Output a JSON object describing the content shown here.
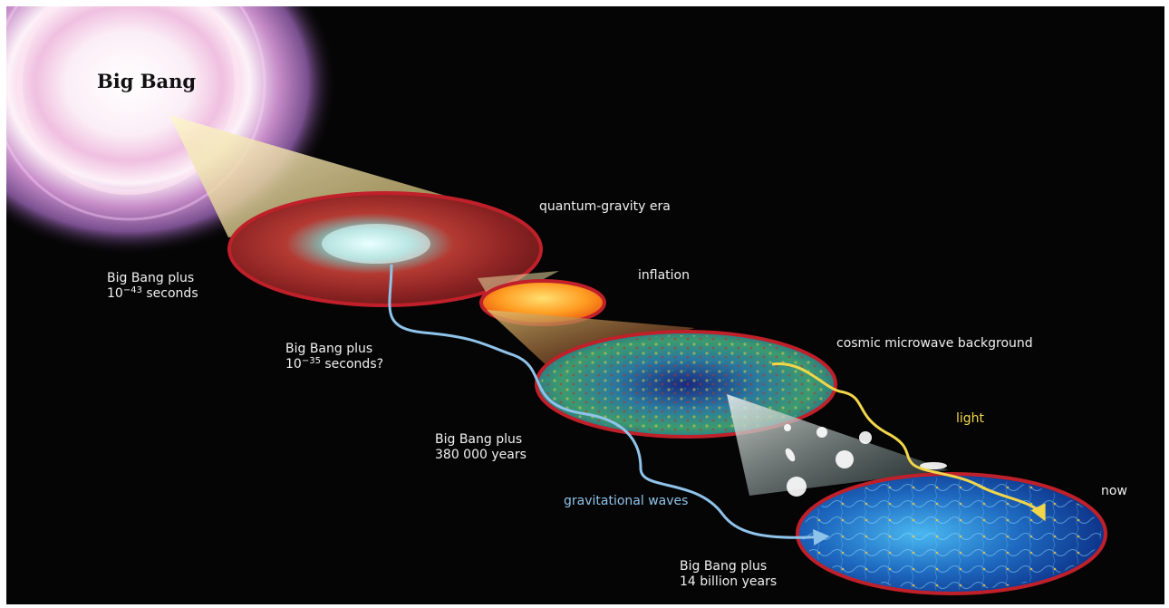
{
  "title": "Big Bang",
  "labels": {
    "quantum_gravity_era": "quantum-gravity era",
    "inflation": "inflation",
    "cmb": "cosmic microwave background",
    "light": "light",
    "now": "now",
    "gravitational_waves": "gravitational waves"
  },
  "stages": [
    {
      "line1": "Big Bang plus",
      "prefix": "10",
      "exponent": "−43",
      "suffix": " seconds"
    },
    {
      "line1": "Big Bang plus",
      "prefix": "10",
      "exponent": "−35",
      "suffix": " seconds?"
    },
    {
      "line1": "Big Bang plus",
      "line2": "380 000 years"
    },
    {
      "line1": "Big Bang plus",
      "line2": "14 billion years"
    }
  ],
  "colors": {
    "gravitational_wave_arrow": "#8fc3ea",
    "light_arrow": "#f2d64a",
    "disc_rim": "#c0202a"
  }
}
